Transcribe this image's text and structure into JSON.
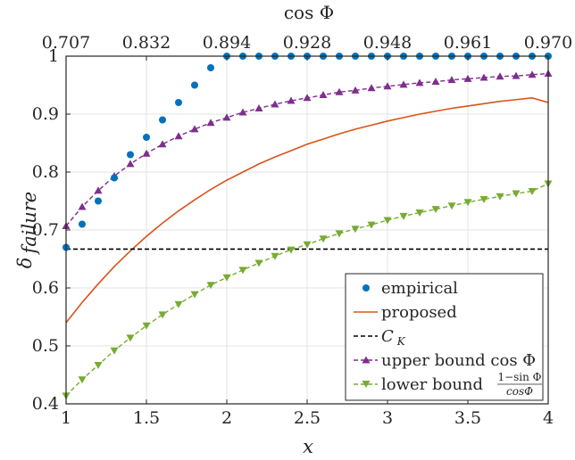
{
  "chart_data": {
    "type": "line",
    "top_axis_title": "cos Φ",
    "top_tick_labels": [
      "0.707",
      "0.832",
      "0.894",
      "0.928",
      "0.948",
      "0.961",
      "0.970"
    ],
    "top_tick_x": [
      1,
      1.5,
      2,
      2.5,
      3,
      3.5,
      4
    ],
    "xlabel": "x",
    "ylabel_main": "δ",
    "ylabel_sub": "failure",
    "xlim": [
      1,
      4
    ],
    "ylim": [
      0.4,
      1
    ],
    "xticks": [
      1,
      1.5,
      2,
      2.5,
      3,
      3.5,
      4
    ],
    "xtick_labels": [
      "1",
      "1.5",
      "2",
      "2.5",
      "3",
      "3.5",
      "4"
    ],
    "yticks": [
      0.4,
      0.5,
      0.6,
      0.7,
      0.8,
      0.9,
      1
    ],
    "ytick_labels": [
      "0.4",
      "0.5",
      "0.6",
      "0.7",
      "0.8",
      "0.9",
      "1"
    ],
    "grid": true,
    "legend_position": "bottom-right",
    "series": [
      {
        "name": "empirical",
        "style": "markers",
        "marker": "circle",
        "color": "#0072BD",
        "x": [
          1,
          1.1,
          1.2,
          1.3,
          1.4,
          1.5,
          1.6,
          1.7,
          1.8,
          1.9,
          2,
          2.1,
          2.2,
          2.3,
          2.4,
          2.5,
          2.6,
          2.7,
          2.8,
          2.9,
          3,
          3.1,
          3.2,
          3.3,
          3.4,
          3.5,
          3.6,
          3.7,
          3.8,
          3.9,
          4
        ],
        "y": [
          0.67,
          0.71,
          0.75,
          0.79,
          0.83,
          0.86,
          0.89,
          0.92,
          0.95,
          0.98,
          1,
          1,
          1,
          1,
          1,
          1,
          1,
          1,
          1,
          1,
          1,
          1,
          1,
          1,
          1,
          1,
          1,
          1,
          1,
          1,
          1
        ]
      },
      {
        "name": "proposed",
        "style": "solid",
        "color": "#D95319",
        "x": [
          1,
          1.1,
          1.2,
          1.3,
          1.4,
          1.5,
          1.6,
          1.7,
          1.8,
          1.9,
          2,
          2.1,
          2.2,
          2.3,
          2.4,
          2.5,
          2.6,
          2.7,
          2.8,
          2.9,
          3,
          3.1,
          3.2,
          3.3,
          3.4,
          3.5,
          3.6,
          3.7,
          3.8,
          3.9,
          4
        ],
        "y": [
          0.54,
          0.575,
          0.607,
          0.637,
          0.664,
          0.689,
          0.712,
          0.733,
          0.752,
          0.77,
          0.786,
          0.8,
          0.814,
          0.826,
          0.837,
          0.848,
          0.857,
          0.866,
          0.874,
          0.881,
          0.888,
          0.894,
          0.9,
          0.905,
          0.91,
          0.914,
          0.918,
          0.922,
          0.925,
          0.928,
          0.92
        ]
      },
      {
        "name": "C",
        "name_sub": "K",
        "style": "dashed",
        "color": "#000000",
        "x": [
          1,
          4
        ],
        "y": [
          0.667,
          0.667
        ]
      },
      {
        "name": "upper bound cos Φ",
        "style": "dashed-markers",
        "marker": "triangle-up",
        "color": "#7E2F8E",
        "x": [
          1,
          1.1,
          1.2,
          1.3,
          1.4,
          1.5,
          1.6,
          1.7,
          1.8,
          1.9,
          2,
          2.1,
          2.2,
          2.3,
          2.4,
          2.5,
          2.6,
          2.7,
          2.8,
          2.9,
          3,
          3.1,
          3.2,
          3.3,
          3.4,
          3.5,
          3.6,
          3.7,
          3.8,
          3.9,
          4
        ],
        "y": [
          0.707,
          0.74,
          0.768,
          0.793,
          0.814,
          0.832,
          0.848,
          0.862,
          0.874,
          0.885,
          0.894,
          0.903,
          0.91,
          0.917,
          0.923,
          0.928,
          0.933,
          0.938,
          0.941,
          0.945,
          0.948,
          0.951,
          0.954,
          0.956,
          0.959,
          0.961,
          0.963,
          0.965,
          0.966,
          0.968,
          0.97
        ]
      },
      {
        "name": "lower bound",
        "name_fraction_num": "1−sin Φ",
        "name_fraction_den": "cosΦ",
        "style": "dashed-markers",
        "marker": "triangle-down",
        "color": "#77AC30",
        "x": [
          1,
          1.1,
          1.2,
          1.3,
          1.4,
          1.5,
          1.6,
          1.7,
          1.8,
          1.9,
          2,
          2.1,
          2.2,
          2.3,
          2.4,
          2.5,
          2.6,
          2.7,
          2.8,
          2.9,
          3,
          3.1,
          3.2,
          3.3,
          3.4,
          3.5,
          3.6,
          3.7,
          3.8,
          3.9,
          4
        ],
        "y": [
          0.414,
          0.442,
          0.467,
          0.492,
          0.514,
          0.535,
          0.554,
          0.572,
          0.589,
          0.605,
          0.618,
          0.631,
          0.643,
          0.655,
          0.666,
          0.675,
          0.685,
          0.694,
          0.702,
          0.709,
          0.717,
          0.724,
          0.73,
          0.736,
          0.742,
          0.748,
          0.753,
          0.758,
          0.763,
          0.767,
          0.78
        ]
      }
    ]
  }
}
